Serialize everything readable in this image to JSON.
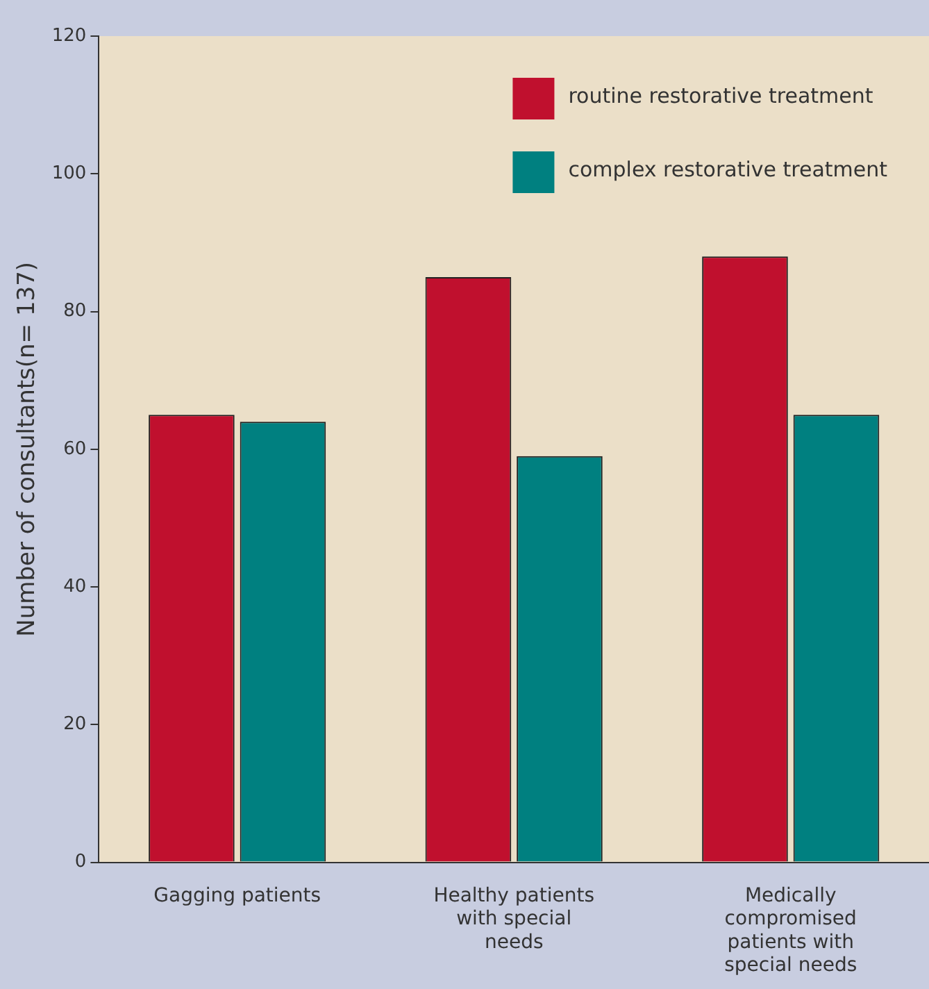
{
  "chart_data": {
    "type": "bar",
    "ylabel": "Number of consultants(n= 137)",
    "categories": [
      "Gagging patients",
      "Healthy patients with special needs",
      "Medically compromised patients with special needs"
    ],
    "series": [
      {
        "name": "routine restorative treatment",
        "color": "#c0102e",
        "values": [
          65,
          85,
          88
        ]
      },
      {
        "name": "complex restorative treatment",
        "color": "#008080",
        "values": [
          64,
          59,
          65
        ]
      }
    ],
    "ylim": [
      0,
      120
    ],
    "yticks": [
      0,
      20,
      40,
      60,
      80,
      100,
      120
    ],
    "grid": false,
    "legend": "top right"
  }
}
